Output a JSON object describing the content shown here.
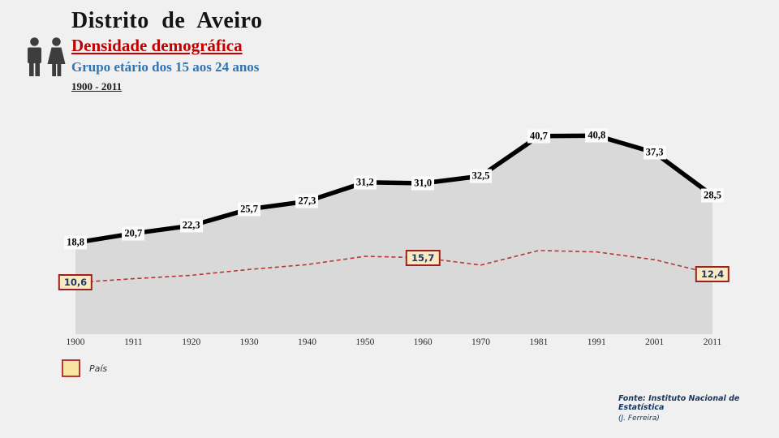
{
  "header": {
    "region": "Distrito de Aveiro",
    "title": "Densidade demográfica",
    "subtitle": "Grupo etário dos 15 aos 24 anos",
    "period": "1900 - 2011"
  },
  "icons": {
    "header_icon": "man-woman-pictogram"
  },
  "chart_data": {
    "type": "line",
    "categories": [
      "1900",
      "1911",
      "1920",
      "1930",
      "1940",
      "1950",
      "1960",
      "1970",
      "1981",
      "1991",
      "2001",
      "2011"
    ],
    "series": [
      {
        "name": "Distrito de Aveiro",
        "style": "thick-black-solid-with-gray-area",
        "values": [
          18.8,
          20.7,
          22.3,
          25.7,
          27.3,
          31.2,
          31.0,
          32.5,
          40.7,
          40.8,
          37.3,
          28.5
        ],
        "point_labels": [
          "18,8",
          "20,7",
          "22,3",
          "25,7",
          "27,3",
          "31,2",
          "31,0",
          "32,5",
          "40,7",
          "40,8",
          "37,3",
          "28,5"
        ]
      },
      {
        "name": "País",
        "style": "thin-red-dashed",
        "values": [
          10.6,
          11.4,
          12.1,
          13.3,
          14.3,
          16.0,
          15.7,
          14.2,
          17.2,
          16.9,
          15.3,
          12.4
        ],
        "labeled_points": [
          {
            "index": 0,
            "label": "10,6"
          },
          {
            "index": 6,
            "label": "15,7"
          },
          {
            "index": 11,
            "label": "12,4"
          }
        ]
      }
    ],
    "ylim": [
      0,
      45
    ],
    "grid": false,
    "legend_position": "bottom-left"
  },
  "legend": {
    "items": [
      {
        "label": "País"
      }
    ]
  },
  "footer": {
    "source": "Fonte: Instituto Nacional de Estatística",
    "credit": "(J. Ferreira)"
  },
  "colors": {
    "page_bg": "#f0f0f0",
    "district_line": "#000000",
    "area_fill": "#d9d9d9",
    "pais_line": "#b73636",
    "value_label_bg": "#fcfcfc",
    "pais_box_bg": "#fbe9c4",
    "pais_box_border": "#9e1f1f",
    "pais_box_text": "#1f3864",
    "title_red": "#c00000",
    "subtitle_blue": "#2e75b6",
    "footer_navy": "#17365d",
    "icon_gray": "#3d3d3d"
  }
}
